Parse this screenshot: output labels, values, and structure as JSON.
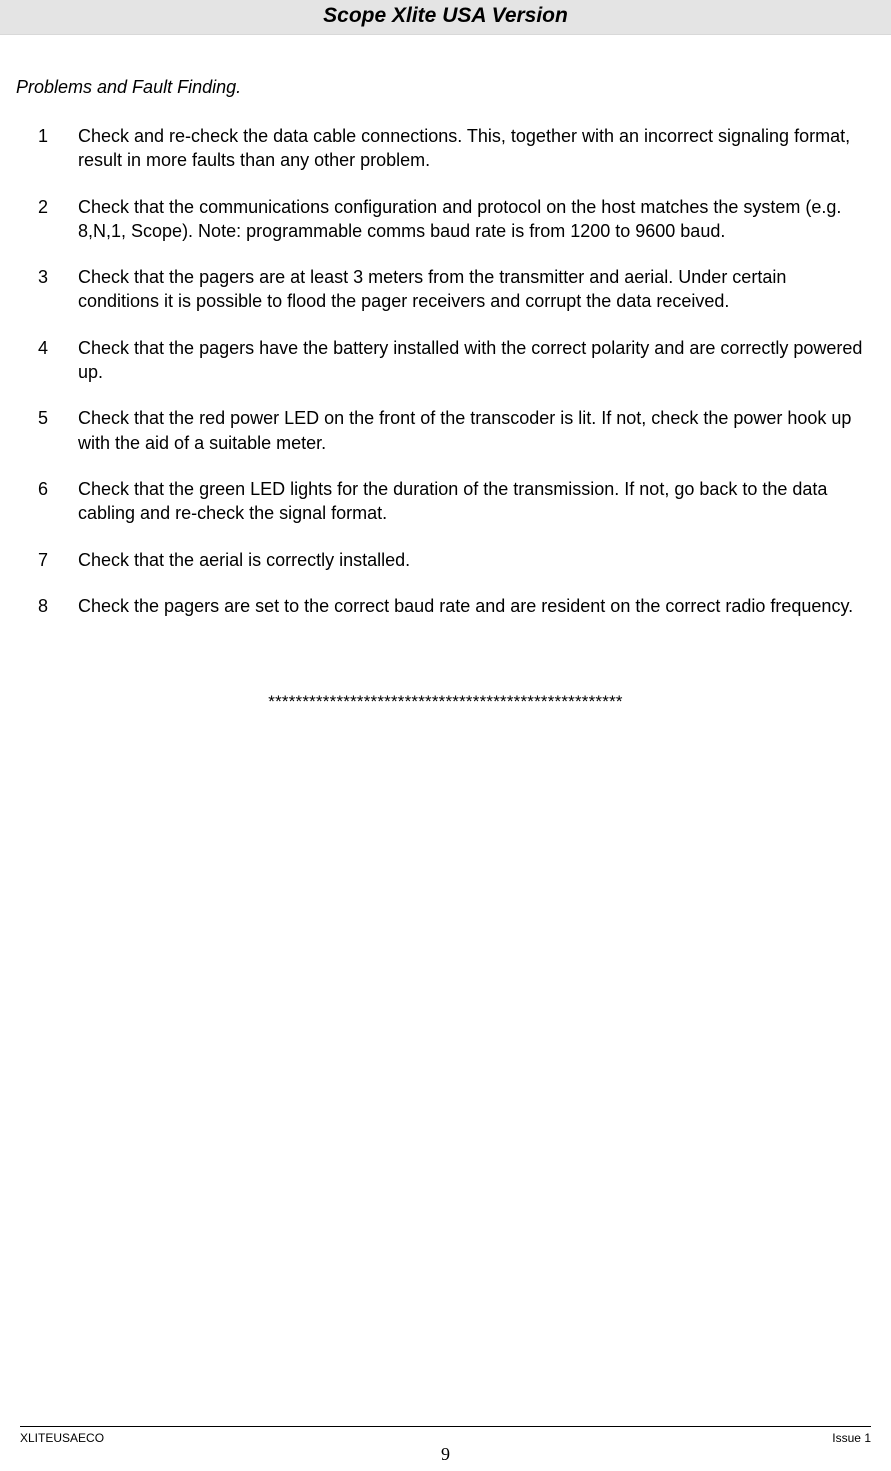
{
  "header": {
    "title": "Scope Xlite USA Version"
  },
  "section": {
    "heading": "Problems and Fault Finding."
  },
  "items": [
    {
      "num": "1",
      "text": "Check and re-check the data cable connections. This, together with an incorrect signaling format, result in more faults than any other problem."
    },
    {
      "num": "2",
      "text": "Check that the communications configuration and protocol on the host matches the system (e.g. 8,N,1, Scope).  Note: programmable comms baud rate is from 1200 to 9600 baud."
    },
    {
      "num": "3",
      "text": "Check that the pagers are at least 3 meters from the transmitter and aerial. Under certain conditions it is possible to flood the pager receivers and corrupt the data received."
    },
    {
      "num": "4",
      "text": "Check that the pagers have the battery installed with the correct polarity and are  correctly powered up."
    },
    {
      "num": "5",
      "text": "Check that the red power LED on the front of the transcoder is lit. If not, check the power hook up with the aid of a suitable meter."
    },
    {
      "num": "6",
      "text": "Check that the green LED lights for the duration of the transmission. If not, go back to the data cabling and re-check the signal format."
    },
    {
      "num": "7",
      "text": "Check that the aerial is correctly installed."
    },
    {
      "num": "8",
      "text": "Check the pagers are set to the correct baud rate and are resident on the correct radio frequency."
    }
  ],
  "separator": "****************************************************",
  "footer": {
    "left": "XLITEUSAECO",
    "right": "Issue 1",
    "page": "9"
  },
  "colors": {
    "header_bg": "#e4e4e4",
    "page_bg": "#ffffff",
    "text": "#000000"
  },
  "typography": {
    "header_title_size": 21,
    "body_size": 18,
    "footer_size": 12,
    "page_num_size": 18
  }
}
